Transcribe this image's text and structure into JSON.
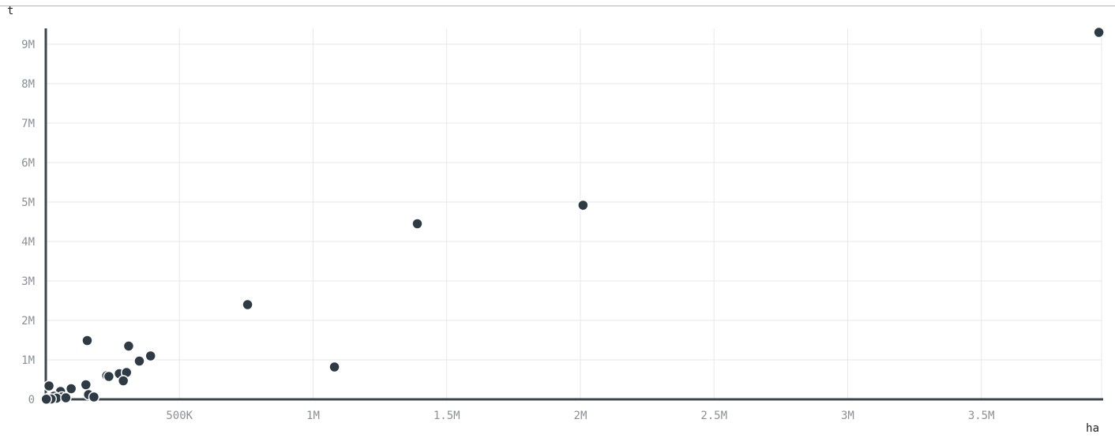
{
  "chart_data": {
    "type": "scatter",
    "xlabel": "ha",
    "ylabel": "t",
    "xlim": [
      0,
      3950000
    ],
    "ylim": [
      0,
      9400000
    ],
    "x_ticks": [
      500000,
      1000000,
      1500000,
      2000000,
      2500000,
      3000000,
      3500000
    ],
    "x_tick_labels": [
      "500K",
      "1M",
      "1.5M",
      "2M",
      "2.5M",
      "3M",
      "3.5M"
    ],
    "y_ticks": [
      0,
      1000000,
      2000000,
      3000000,
      4000000,
      5000000,
      6000000,
      7000000,
      8000000,
      9000000
    ],
    "y_tick_labels": [
      "0",
      "1M",
      "2M",
      "3M",
      "4M",
      "5M",
      "6M",
      "7M",
      "8M",
      "9M"
    ],
    "grid": true,
    "marker_color": "#2e3b44",
    "axis_color": "#3a454c",
    "points": [
      {
        "x": 3940000,
        "y": 9300000
      },
      {
        "x": 2010000,
        "y": 4920000
      },
      {
        "x": 1390000,
        "y": 4450000
      },
      {
        "x": 755000,
        "y": 2400000
      },
      {
        "x": 1080000,
        "y": 820000
      },
      {
        "x": 155000,
        "y": 1490000
      },
      {
        "x": 310000,
        "y": 1350000
      },
      {
        "x": 392000,
        "y": 1100000
      },
      {
        "x": 350000,
        "y": 970000
      },
      {
        "x": 275000,
        "y": 650000
      },
      {
        "x": 302000,
        "y": 680000
      },
      {
        "x": 228000,
        "y": 600000
      },
      {
        "x": 236000,
        "y": 580000
      },
      {
        "x": 290000,
        "y": 470000
      },
      {
        "x": 150000,
        "y": 370000
      },
      {
        "x": 12000,
        "y": 340000
      },
      {
        "x": 95000,
        "y": 270000
      },
      {
        "x": 55000,
        "y": 200000
      },
      {
        "x": 160000,
        "y": 120000
      },
      {
        "x": 180000,
        "y": 60000
      },
      {
        "x": 30000,
        "y": 80000
      },
      {
        "x": 60000,
        "y": 60000
      },
      {
        "x": 8000,
        "y": 20000
      },
      {
        "x": 40000,
        "y": 30000
      },
      {
        "x": 75000,
        "y": 40000
      },
      {
        "x": 20000,
        "y": 10000
      },
      {
        "x": 2000,
        "y": 5000
      }
    ]
  }
}
